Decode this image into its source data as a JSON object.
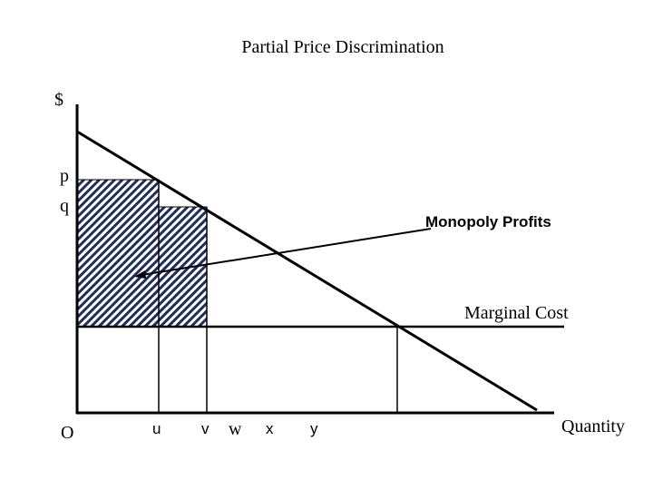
{
  "title": "Partial Price Discrimination",
  "axes": {
    "y_label": "$",
    "x_label": "Quantity",
    "origin": "O"
  },
  "price_labels": [
    "p",
    "q"
  ],
  "quantity_labels": [
    "u",
    "v",
    "w",
    "x",
    "y"
  ],
  "annotations": {
    "profits": "Monopoly Profits",
    "marginal_cost": "Marginal Cost"
  }
}
